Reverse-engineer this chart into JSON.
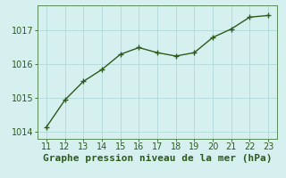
{
  "x": [
    11,
    12,
    13,
    14,
    15,
    16,
    17,
    18,
    19,
    20,
    21,
    22,
    23
  ],
  "y": [
    1014.15,
    1014.95,
    1015.5,
    1015.85,
    1016.3,
    1016.5,
    1016.35,
    1016.25,
    1016.35,
    1016.8,
    1017.05,
    1017.4,
    1017.45
  ],
  "xlim": [
    10.5,
    23.5
  ],
  "ylim": [
    1013.8,
    1017.75
  ],
  "yticks": [
    1014,
    1015,
    1016,
    1017
  ],
  "xticks": [
    11,
    12,
    13,
    14,
    15,
    16,
    17,
    18,
    19,
    20,
    21,
    22,
    23
  ],
  "xlabel": "Graphe pression niveau de la mer (hPa)",
  "line_color": "#2d5a1b",
  "marker_color": "#2d5a1b",
  "bg_color": "#d6f0f0",
  "grid_color": "#b0d8d8",
  "border_color": "#5a8a5a",
  "tick_color": "#2d5a1b",
  "label_color": "#2d5a1b",
  "tick_fontsize": 7,
  "xlabel_fontsize": 8,
  "line_width": 1.0,
  "marker_size": 4
}
